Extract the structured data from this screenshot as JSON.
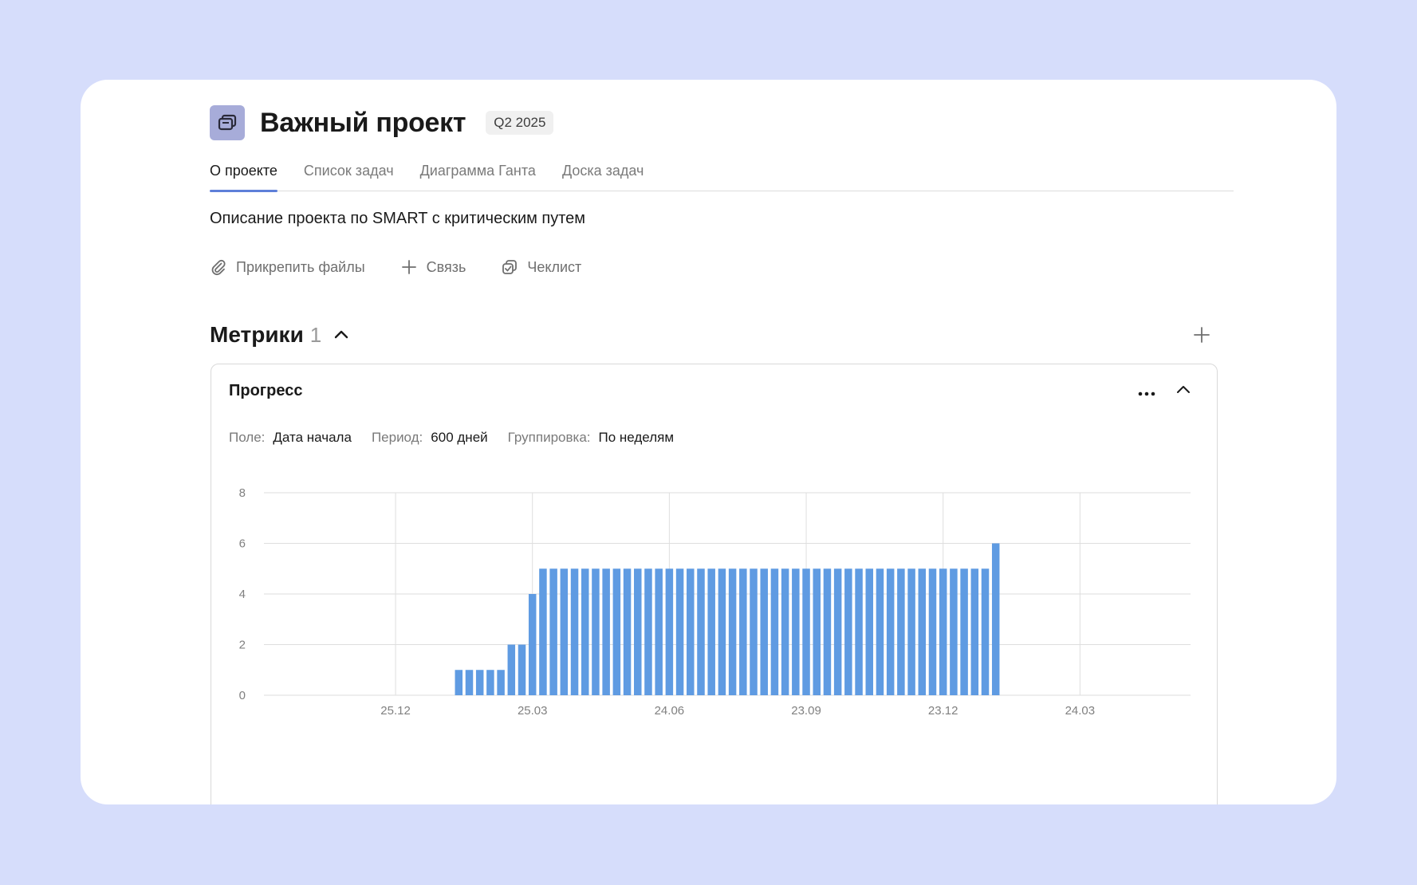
{
  "project": {
    "title": "Важный проект",
    "badge": "Q2 2025",
    "icon": "folder-stack-icon"
  },
  "tabs": [
    {
      "label": "О проекте",
      "active": true
    },
    {
      "label": "Список задач",
      "active": false
    },
    {
      "label": "Диаграмма Ганта",
      "active": false
    },
    {
      "label": "Доска задач",
      "active": false
    }
  ],
  "description": "Описание проекта по SMART с критическим путем",
  "actions": [
    {
      "label": "Прикрепить файлы",
      "icon": "paperclip-icon"
    },
    {
      "label": "Связь",
      "icon": "plus-icon"
    },
    {
      "label": "Чеклист",
      "icon": "checklist-icon"
    }
  ],
  "metrics": {
    "title": "Метрики",
    "count": "1"
  },
  "metric_card": {
    "title": "Прогресс",
    "filters": [
      {
        "label": "Поле:",
        "value": "Дата начала"
      },
      {
        "label": "Период:",
        "value": "600 дней"
      },
      {
        "label": "Группировка:",
        "value": "По неделям"
      }
    ]
  },
  "colors": {
    "accent": "#5e7fd9",
    "bar": "#5f9be2",
    "background": "#d6ddfb",
    "project_icon": "#a7acd9"
  },
  "chart_data": {
    "type": "bar",
    "title": "",
    "xlabel": "",
    "ylabel": "",
    "ylim": [
      0,
      8
    ],
    "yticks": [
      0,
      2,
      4,
      6,
      8
    ],
    "xticks": [
      "25.12",
      "25.03",
      "24.06",
      "23.09",
      "23.12",
      "24.03"
    ],
    "grid": true,
    "x_range_weeks": [
      -12.5,
      75.5
    ],
    "xtick_weeks": [
      0,
      13,
      26,
      39,
      52,
      65
    ],
    "start_week": 6,
    "values": [
      1,
      1,
      1,
      1,
      1,
      2,
      2,
      4,
      5,
      5,
      5,
      5,
      5,
      5,
      5,
      5,
      5,
      5,
      5,
      5,
      5,
      5,
      5,
      5,
      5,
      5,
      5,
      5,
      5,
      5,
      5,
      5,
      5,
      5,
      5,
      5,
      5,
      5,
      5,
      5,
      5,
      5,
      5,
      5,
      5,
      5,
      5,
      5,
      5,
      5,
      5,
      6
    ]
  }
}
